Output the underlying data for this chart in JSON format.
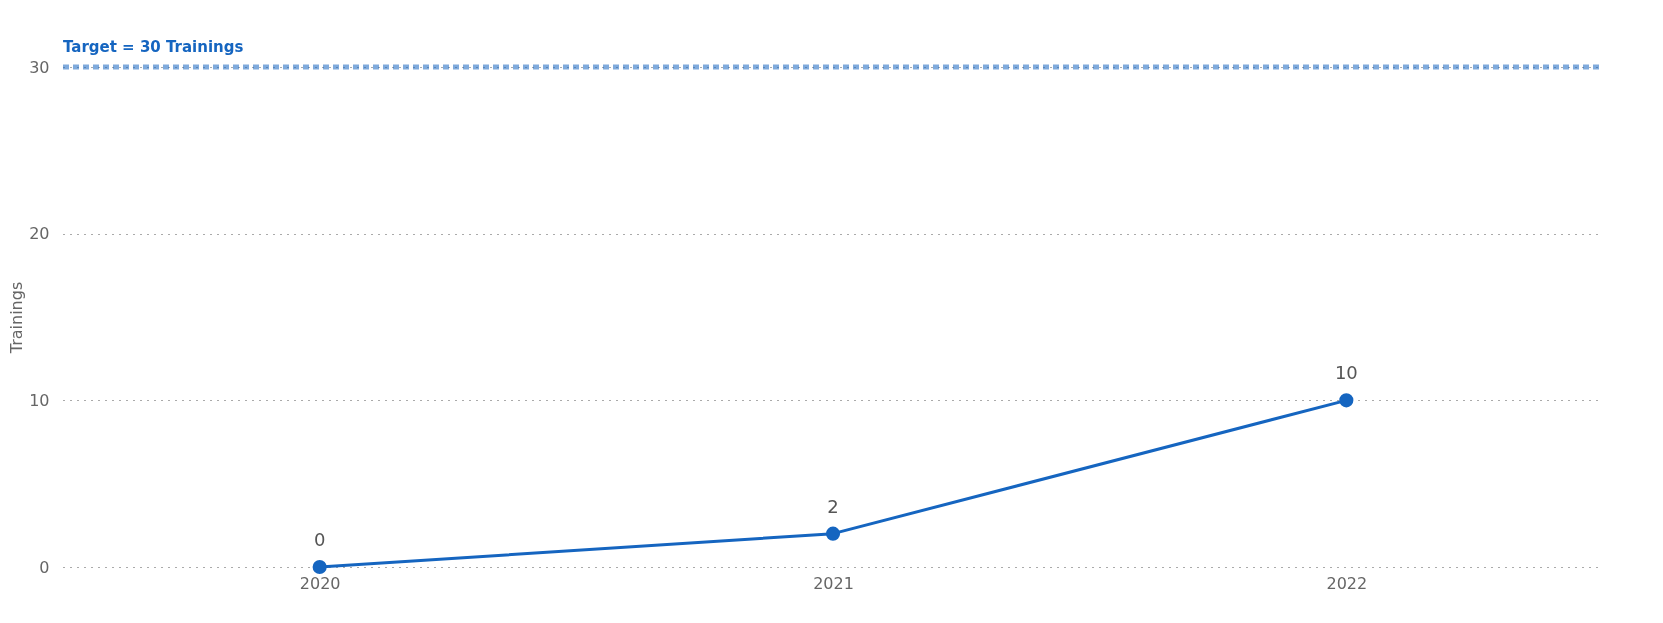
{
  "chart_data": {
    "type": "line",
    "ylabel": "Trainings",
    "categories": [
      "2020",
      "2021",
      "2022"
    ],
    "values": [
      0,
      2,
      10
    ],
    "color": "#1565c0",
    "ylim": [
      0,
      30
    ],
    "yticks": [
      0,
      10,
      20,
      30
    ],
    "grid": "y",
    "marker": "circle",
    "line_style": "solid",
    "data_labels": true,
    "ref_lines": [
      {
        "axis": "y",
        "value": 30,
        "label": "Target = 30 Trainings",
        "color": "#1565c0",
        "line_style": "dashed"
      }
    ]
  }
}
